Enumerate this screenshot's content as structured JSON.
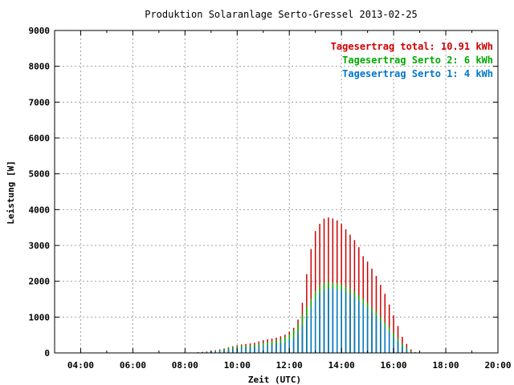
{
  "chart_data": {
    "type": "bar",
    "title": "Produktion Solaranlage Serto-Gressel 2013-02-25",
    "xlabel": "Zeit (UTC)",
    "ylabel": "Leistung [W]",
    "xlim": [
      "03:00",
      "20:00"
    ],
    "ylim": [
      0,
      9000
    ],
    "x_ticks": [
      "04:00",
      "06:00",
      "08:00",
      "10:00",
      "12:00",
      "14:00",
      "16:00",
      "18:00",
      "20:00"
    ],
    "y_ticks": [
      "0",
      "1000",
      "2000",
      "3000",
      "4000",
      "5000",
      "6000",
      "7000",
      "8000",
      "9000"
    ],
    "grid": true,
    "stacked": true,
    "legend_position": "top-right",
    "legend": [
      {
        "label": "Tagesertrag total: 10.91 kWh",
        "color": "#cc0000"
      },
      {
        "label": "Tagesertrag Serto 2: 6 kWh",
        "color": "#00aa00"
      },
      {
        "label": "Tagesertrag Serto 1: 4 kWh",
        "color": "#0077cc"
      }
    ],
    "series_colors": {
      "total": "#cc0000",
      "serto2": "#00aa00",
      "serto1": "#0077cc"
    },
    "x": [
      "08:30",
      "08:40",
      "08:50",
      "09:00",
      "09:10",
      "09:20",
      "09:30",
      "09:40",
      "09:50",
      "10:00",
      "10:10",
      "10:20",
      "10:30",
      "10:40",
      "10:50",
      "11:00",
      "11:10",
      "11:20",
      "11:30",
      "11:40",
      "11:50",
      "12:00",
      "12:10",
      "12:20",
      "12:30",
      "12:40",
      "12:50",
      "13:00",
      "13:10",
      "13:20",
      "13:30",
      "13:40",
      "13:50",
      "14:00",
      "14:10",
      "14:20",
      "14:30",
      "14:40",
      "14:50",
      "15:00",
      "15:10",
      "15:20",
      "15:30",
      "15:40",
      "15:50",
      "16:00",
      "16:10",
      "16:20",
      "16:30",
      "16:40",
      "16:50"
    ],
    "series": [
      {
        "key": "serto1",
        "values": [
          10,
          15,
          20,
          30,
          40,
          55,
          70,
          90,
          110,
          130,
          140,
          150,
          150,
          165,
          190,
          200,
          215,
          230,
          250,
          280,
          310,
          360,
          430,
          560,
          750,
          1000,
          1250,
          1500,
          1650,
          1750,
          1800,
          1800,
          1780,
          1750,
          1700,
          1620,
          1550,
          1450,
          1350,
          1250,
          1120,
          1000,
          860,
          720,
          580,
          440,
          300,
          180,
          90,
          30,
          5
        ]
      },
      {
        "key": "serto2",
        "values": [
          5,
          8,
          10,
          15,
          20,
          25,
          35,
          45,
          50,
          55,
          60,
          60,
          65,
          70,
          70,
          75,
          85,
          90,
          100,
          110,
          130,
          160,
          200,
          260,
          320,
          300,
          260,
          230,
          230,
          210,
          200,
          170,
          160,
          160,
          160,
          160,
          160,
          160,
          160,
          150,
          150,
          150,
          140,
          140,
          130,
          120,
          110,
          90,
          60,
          30,
          5
        ]
      },
      {
        "key": "total",
        "values": [
          20,
          30,
          40,
          55,
          75,
          100,
          125,
          155,
          185,
          215,
          235,
          250,
          265,
          285,
          320,
          355,
          380,
          400,
          425,
          465,
          510,
          590,
          700,
          930,
          1400,
          2200,
          2900,
          3400,
          3600,
          3750,
          3780,
          3750,
          3700,
          3600,
          3450,
          3300,
          3150,
          2950,
          2700,
          2550,
          2350,
          2150,
          1900,
          1650,
          1350,
          1050,
          750,
          450,
          250,
          100,
          20
        ]
      }
    ]
  }
}
